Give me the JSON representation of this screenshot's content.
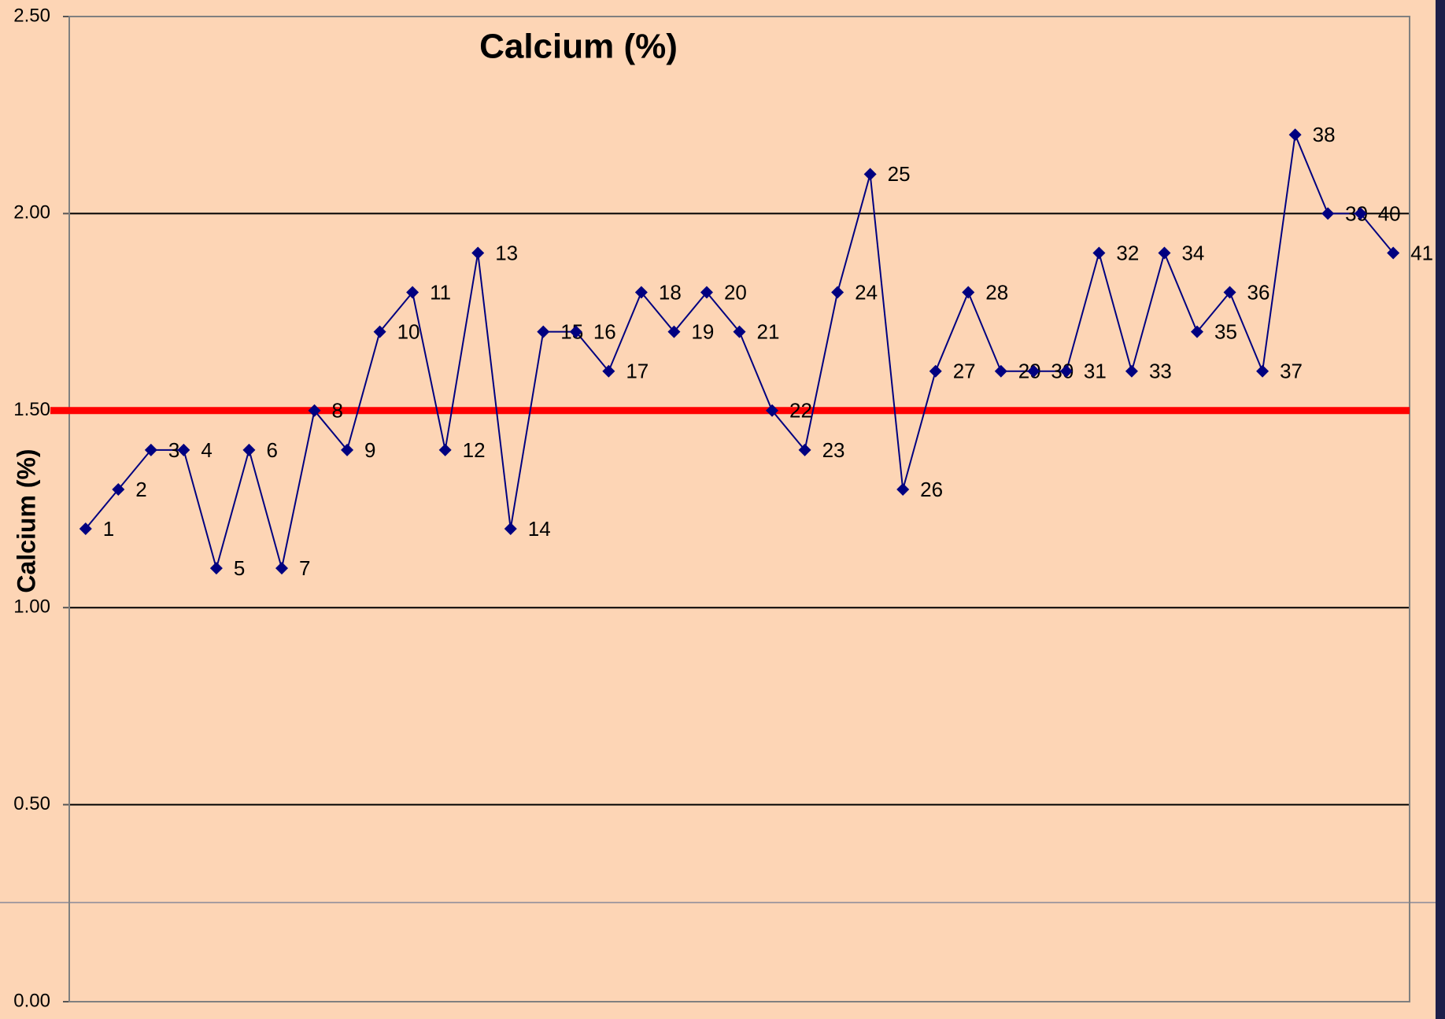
{
  "chart_data": {
    "type": "line",
    "title": "Calcium (%)",
    "y_label": "Calcium (%)",
    "categories": [
      "1",
      "2",
      "3",
      "4",
      "5",
      "6",
      "7",
      "8",
      "9",
      "10",
      "11",
      "12",
      "13",
      "14",
      "15",
      "16",
      "17",
      "18",
      "19",
      "20",
      "21",
      "22",
      "23",
      "24",
      "25",
      "26",
      "27",
      "28",
      "29",
      "30",
      "31",
      "32",
      "33",
      "34",
      "35",
      "36",
      "37",
      "38",
      "39",
      "40",
      "41"
    ],
    "series": [
      {
        "color": "#000080",
        "values": [
          1.2,
          1.3,
          1.4,
          1.4,
          1.1,
          1.4,
          1.1,
          1.5,
          1.4,
          1.7,
          1.8,
          1.4,
          1.9,
          1.2,
          1.7,
          1.7,
          1.6,
          1.8,
          1.7,
          1.8,
          1.7,
          1.5,
          1.4,
          1.8,
          2.1,
          1.3,
          1.6,
          1.8,
          1.6,
          1.6,
          1.6,
          1.9,
          1.6,
          1.9,
          1.7,
          1.8,
          1.6,
          2.2,
          2.0,
          2.0,
          1.9
        ]
      }
    ],
    "reference_line": {
      "value": 1.5,
      "color": "#ff0000"
    },
    "ylim": [
      0,
      2.5
    ],
    "yticks": [
      {
        "value": 0,
        "label": "0.00"
      },
      {
        "value": 0.5,
        "label": "0.50"
      },
      {
        "value": 1,
        "label": "1.00"
      },
      {
        "value": 1.5,
        "label": "1.50"
      },
      {
        "value": 2,
        "label": "2.00"
      },
      {
        "value": 2.5,
        "label": "2.50"
      }
    ],
    "grid": true
  }
}
